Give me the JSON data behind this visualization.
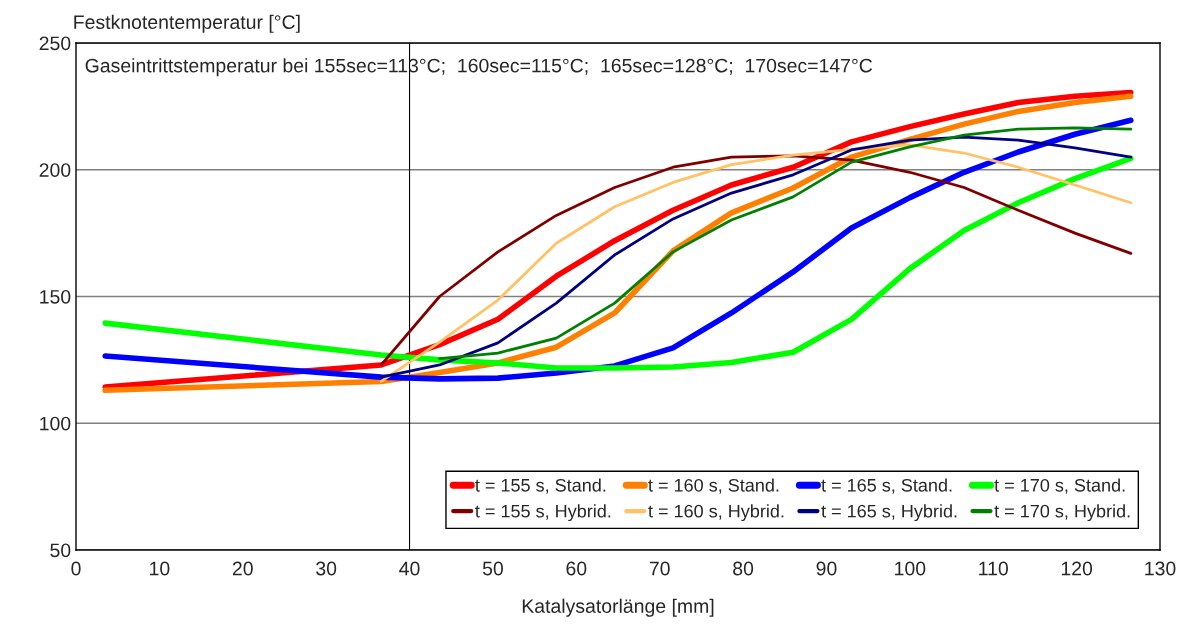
{
  "chart_data": {
    "type": "line",
    "xlabel": "Katalysatorlänge [mm]",
    "ylabel": "Festknotentemperatur [°C]",
    "annotations": [
      "Gaseintrittstemperatur bei 155sec=113°C;  160sec=115°C;  165sec=128°C;  170sec=147°C"
    ],
    "x": [
      3.5,
      36.6,
      43.6,
      50.6,
      57.6,
      64.6,
      71.6,
      78.6,
      86,
      93,
      100,
      106.5,
      113,
      119.8,
      126.5
    ],
    "series": [
      {
        "name": "t = 155 s, Stand.",
        "color": "#ff0000",
        "values": [
          114.3,
          123,
          131,
          141,
          158,
          172,
          184,
          194,
          201,
          211,
          217,
          222,
          226.5,
          229,
          230.5
        ]
      },
      {
        "name": "t = 155 s, Hybrid.",
        "color": "#800000",
        "values": [
          null,
          123,
          150,
          167.6,
          182,
          193,
          201,
          205,
          205.5,
          203.8,
          199,
          193,
          184,
          175,
          167
        ]
      },
      {
        "name": "t = 160 s, Stand.",
        "color": "#ff8000",
        "values": [
          113,
          116.5,
          120,
          123.8,
          130,
          143.5,
          168,
          183,
          192.8,
          205,
          212,
          218,
          223,
          226.5,
          229
        ]
      },
      {
        "name": "t = 160 s, Hybrid.",
        "color": "#ffc266",
        "values": [
          null,
          116.5,
          132,
          148.6,
          171,
          185.4,
          195,
          202,
          205.8,
          208,
          209.8,
          206.6,
          201,
          194,
          187
        ]
      },
      {
        "name": "t = 165 s, Stand.",
        "color": "#0000ff",
        "values": [
          126.5,
          118.2,
          117.5,
          117.8,
          119.8,
          122.6,
          129.7,
          143.5,
          159.7,
          177,
          189,
          199,
          207,
          214,
          219.5
        ]
      },
      {
        "name": "t = 165 s, Hybrid.",
        "color": "#000080",
        "values": [
          null,
          118.2,
          123,
          131.7,
          147.4,
          166.4,
          180.6,
          190.8,
          198,
          207.8,
          211.7,
          212.9,
          211.7,
          208.6,
          205
        ]
      },
      {
        "name": "t = 170 s, Stand.",
        "color": "#00ff00",
        "values": [
          139.5,
          126.9,
          125,
          123.8,
          121.8,
          121.8,
          122.2,
          124,
          128,
          141,
          161,
          176,
          187,
          196.5,
          204.5
        ]
      },
      {
        "name": "t = 170 s, Hybrid.",
        "color": "#008000",
        "values": [
          null,
          null,
          125.5,
          127.7,
          133.6,
          147.4,
          167.6,
          180.2,
          189.3,
          203,
          209,
          213.7,
          216,
          216.5,
          216
        ]
      }
    ],
    "xlim": [
      0,
      130
    ],
    "xticks": [
      0,
      10,
      20,
      30,
      40,
      50,
      60,
      70,
      80,
      90,
      100,
      110,
      120,
      130
    ],
    "ylim": [
      50,
      250
    ],
    "yticks": [
      50,
      100,
      150,
      200,
      250
    ],
    "ref_lines": [
      {
        "axis": "x",
        "value": 40,
        "color": "#000000"
      }
    ],
    "grid": "y",
    "legend": "bottom right",
    "marker": "none",
    "line_style": "solid"
  }
}
